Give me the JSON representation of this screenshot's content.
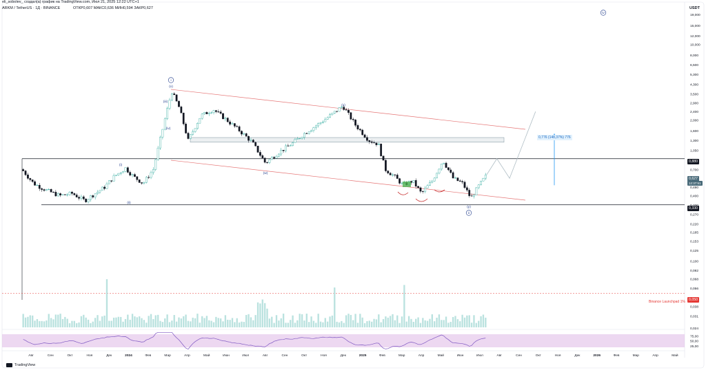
{
  "header": {
    "line1": "eli_sobolev_ создал(а) график на TradingView.com, Июл 21, 2025 12:22 UTC+1",
    "symbol": "ARKM / TetherUS · 1Д · BINANCE",
    "ohlc": "ОТКР0,607  МАКС0,636  МИН0,594  ЗАКР0,627"
  },
  "footer": {
    "brand": "TradingView"
  },
  "currency_label": "USDT",
  "price_tags": {
    "level_high": "0,880",
    "current": "0,627",
    "current_sub": "12:37:51",
    "level_low": "0,330",
    "launchpad": "0,050"
  },
  "annotations": {
    "measure": "0,776 (148,37%) 776",
    "launchpad_line": "Binance Launchpad 1%"
  },
  "wave_labels": [
    "i",
    "(v)",
    "(iii)",
    "(iv)",
    "(i)",
    "(ii)",
    "(x)",
    "(w)",
    "(y)",
    "ii",
    "iv"
  ],
  "colors": {
    "up": "#26a69a",
    "down": "#131722",
    "channel": "#e57373",
    "wave_label": "#1e3a8a",
    "rsi_fill": "#e1bee7",
    "rsi_line": "#7e57c2",
    "measure": "#2196f3",
    "volume": "#b2dfdb"
  },
  "chart_data": [
    {
      "type": "candlestick",
      "y_scale": "log",
      "y_ticks": [
        "0,024",
        "0,031",
        "0,038",
        "0,045",
        "0,056",
        "0,068",
        "0,082",
        "0,100",
        "0,125",
        "0,153",
        "0,185",
        "0,220",
        "0,270",
        "0,330",
        "0,400",
        "0,480",
        "0,580",
        "0,700",
        "0,850",
        "1,050",
        "1,300",
        "1,600",
        "2,000",
        "2,400",
        "2,900",
        "3,500",
        "4,300",
        "5,300",
        "6,500",
        "8,000",
        "10,000",
        "12,000",
        "15,000",
        "19,000"
      ],
      "x_ticks": [
        "Авг",
        "Сен",
        "Окт",
        "Ноя",
        "Дек",
        "2024",
        "Фев",
        "Мар",
        "Апр",
        "Май",
        "Июн",
        "Июл",
        "Авг",
        "Сен",
        "Окт",
        "Ноя",
        "Дек",
        "2025",
        "Фев",
        "Мар",
        "Апр",
        "Май",
        "Июн",
        "Июл",
        "Авг",
        "Сен",
        "Окт",
        "Ноя",
        "Дек",
        "2026",
        "Фев",
        "Мар",
        "Апр",
        "Май"
      ],
      "ylim": [
        0.024,
        21
      ],
      "close_path": [
        {
          "x": "2023-07-18",
          "y": 0.7
        },
        {
          "x": "2023-08-05",
          "y": 0.52
        },
        {
          "x": "2023-08-25",
          "y": 0.45
        },
        {
          "x": "2023-09-15",
          "y": 0.4
        },
        {
          "x": "2023-10-05",
          "y": 0.42
        },
        {
          "x": "2023-10-25",
          "y": 0.36
        },
        {
          "x": "2023-11-05",
          "y": 0.4
        },
        {
          "x": "2023-11-25",
          "y": 0.48
        },
        {
          "x": "2023-12-10",
          "y": 0.6
        },
        {
          "x": "2023-12-28",
          "y": 0.72
        },
        {
          "x": "2024-01-10",
          "y": 0.6
        },
        {
          "x": "2024-01-25",
          "y": 0.52
        },
        {
          "x": "2024-02-10",
          "y": 0.7
        },
        {
          "x": "2024-02-28",
          "y": 2.0
        },
        {
          "x": "2024-03-10",
          "y": 3.7
        },
        {
          "x": "2024-03-22",
          "y": 2.6
        },
        {
          "x": "2024-04-05",
          "y": 1.3
        },
        {
          "x": "2024-04-25",
          "y": 2.2
        },
        {
          "x": "2024-05-15",
          "y": 2.5
        },
        {
          "x": "2024-06-05",
          "y": 2.0
        },
        {
          "x": "2024-06-25",
          "y": 1.6
        },
        {
          "x": "2024-07-15",
          "y": 1.25
        },
        {
          "x": "2024-08-05",
          "y": 0.8
        },
        {
          "x": "2024-08-25",
          "y": 1.0
        },
        {
          "x": "2024-09-15",
          "y": 1.2
        },
        {
          "x": "2024-10-05",
          "y": 1.5
        },
        {
          "x": "2024-10-25",
          "y": 1.8
        },
        {
          "x": "2024-11-15",
          "y": 2.2
        },
        {
          "x": "2024-12-05",
          "y": 2.7
        },
        {
          "x": "2024-12-25",
          "y": 1.8
        },
        {
          "x": "2025-01-15",
          "y": 1.3
        },
        {
          "x": "2025-01-30",
          "y": 1.2
        },
        {
          "x": "2025-02-10",
          "y": 0.7
        },
        {
          "x": "2025-02-25",
          "y": 0.6
        },
        {
          "x": "2025-03-10",
          "y": 0.5
        },
        {
          "x": "2025-03-25",
          "y": 0.55
        },
        {
          "x": "2025-04-08",
          "y": 0.42
        },
        {
          "x": "2025-04-25",
          "y": 0.55
        },
        {
          "x": "2025-05-12",
          "y": 0.85
        },
        {
          "x": "2025-05-28",
          "y": 0.58
        },
        {
          "x": "2025-06-12",
          "y": 0.52
        },
        {
          "x": "2025-06-25",
          "y": 0.38
        },
        {
          "x": "2025-07-08",
          "y": 0.5
        },
        {
          "x": "2025-07-20",
          "y": 0.627
        }
      ],
      "horizontal_levels": [
        0.88,
        0.33,
        0.05
      ],
      "supply_zone": [
        1.25,
        1.38
      ],
      "projection_path": [
        {
          "x": "2025-07-20",
          "y": 0.627
        },
        {
          "x": "2025-08-05",
          "y": 0.88
        },
        {
          "x": "2025-08-25",
          "y": 0.58
        },
        {
          "x": "2025-10-05",
          "y": 2.4
        }
      ]
    },
    {
      "type": "bar",
      "title": "Volume"
    },
    {
      "type": "line",
      "title": "RSI",
      "y_ticks": [
        "75,00",
        "50,00",
        "25,00"
      ],
      "ylim": [
        0,
        100
      ]
    }
  ]
}
